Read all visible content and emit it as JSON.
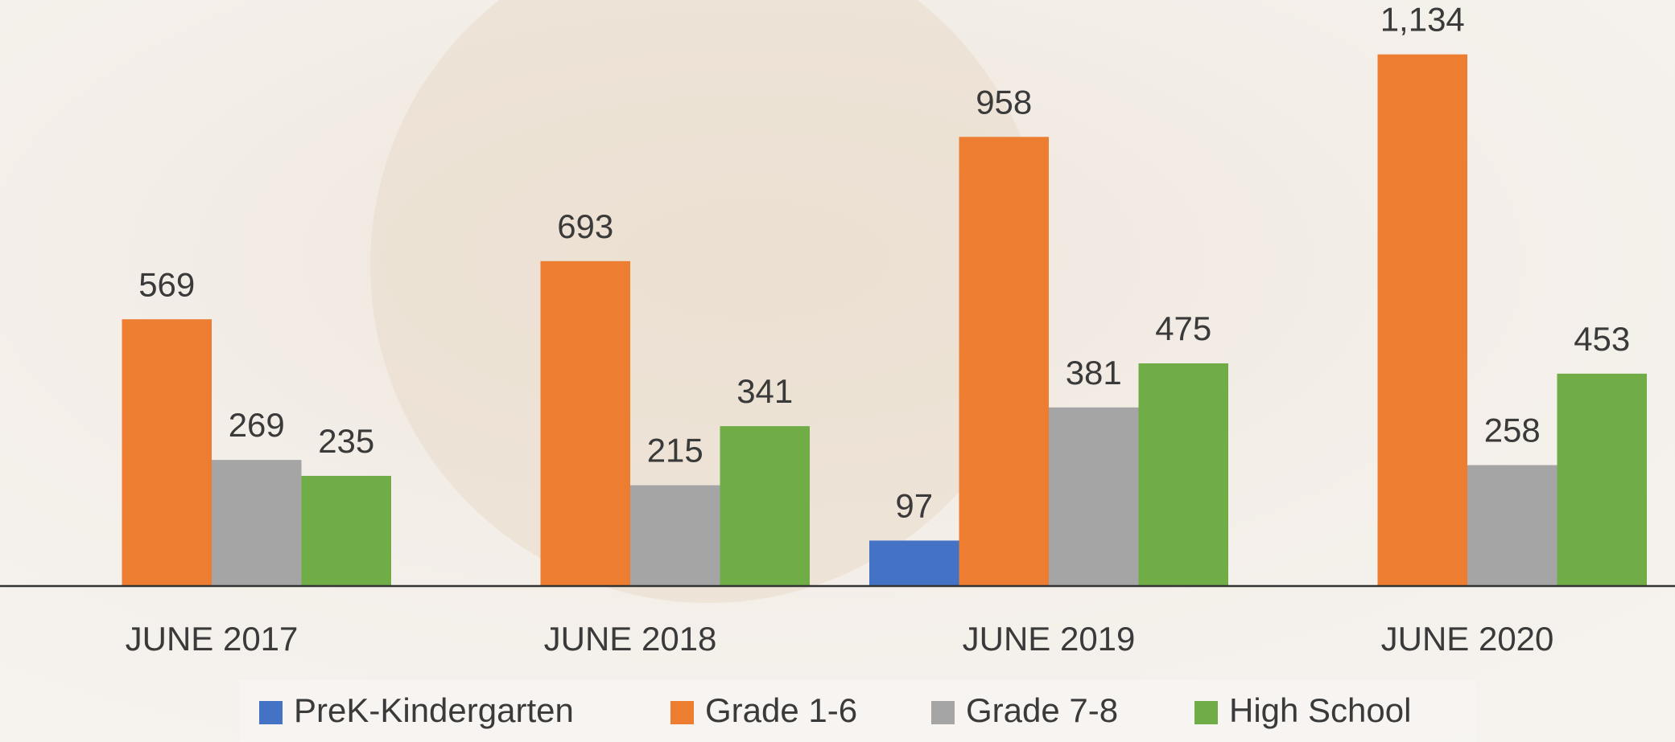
{
  "chart_data": {
    "type": "bar",
    "categories": [
      "JUNE 2017",
      "JUNE 2018",
      "JUNE 2019",
      "JUNE 2020"
    ],
    "series": [
      {
        "name": "PreK-Kindergarten",
        "color": "#4472c4",
        "values": [
          null,
          null,
          97,
          null
        ]
      },
      {
        "name": "Grade 1-6",
        "color": "#ed7d31",
        "values": [
          569,
          693,
          958,
          1134
        ],
        "value_labels": [
          "569",
          "693",
          "958",
          "1,134"
        ]
      },
      {
        "name": "Grade 7-8",
        "color": "#a5a5a5",
        "values": [
          269,
          215,
          381,
          258
        ]
      },
      {
        "name": "High School",
        "color": "#70ad47",
        "values": [
          235,
          341,
          475,
          453
        ]
      }
    ],
    "ylim": [
      0,
      1250
    ],
    "legend": "bottom"
  }
}
